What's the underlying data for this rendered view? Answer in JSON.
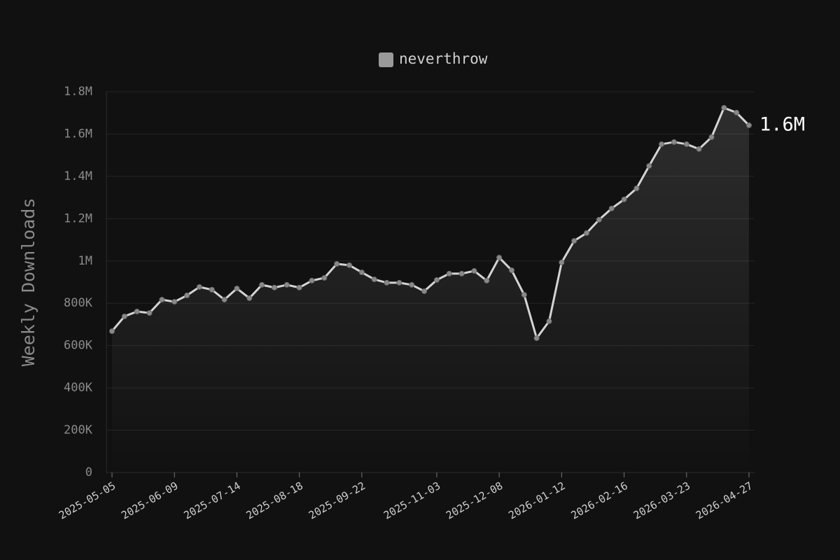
{
  "chart_data": {
    "type": "line",
    "y_label": "Weekly Downloads",
    "categories": [
      "2025-05-05",
      null,
      null,
      null,
      null,
      "2025-06-09",
      null,
      null,
      null,
      null,
      "2025-07-14",
      null,
      null,
      null,
      null,
      "2025-08-18",
      null,
      null,
      null,
      null,
      "2025-09-22",
      null,
      null,
      null,
      null,
      null,
      "2025-11-03",
      null,
      null,
      null,
      null,
      "2025-12-08",
      null,
      null,
      null,
      null,
      "2026-01-12",
      null,
      null,
      null,
      null,
      "2026-02-16",
      null,
      null,
      null,
      null,
      "2026-03-23",
      null,
      null,
      null,
      null,
      "2026-04-27"
    ],
    "series": [
      {
        "name": "neverthrow",
        "color": "#d4d4d4",
        "legend_color": "#9a9a9a",
        "values": [
          668000,
          738000,
          761000,
          754000,
          817000,
          807000,
          837000,
          877000,
          864000,
          817000,
          870000,
          824000,
          887000,
          874000,
          887000,
          874000,
          907000,
          920000,
          986000,
          980000,
          946000,
          913000,
          897000,
          897000,
          887000,
          857000,
          910000,
          940000,
          940000,
          953000,
          907000,
          1016000,
          956000,
          840000,
          635000,
          715000,
          993000,
          1095000,
          1132000,
          1195000,
          1248000,
          1291000,
          1343000,
          1449000,
          1552000,
          1562000,
          1552000,
          1529000,
          1585000,
          1724000,
          1701000,
          1641000
        ],
        "value_labels": [
          null,
          null,
          null,
          null,
          null,
          null,
          null,
          null,
          null,
          null,
          null,
          null,
          null,
          null,
          null,
          null,
          null,
          null,
          null,
          null,
          null,
          null,
          null,
          null,
          null,
          null,
          null,
          null,
          null,
          null,
          null,
          null,
          null,
          null,
          null,
          null,
          null,
          null,
          null,
          null,
          null,
          null,
          null,
          null,
          null,
          null,
          null,
          null,
          null,
          null,
          null,
          "1.6M"
        ]
      }
    ],
    "ylim": [
      0,
      1800000
    ],
    "yticks": [
      0,
      {
        "value": 200000,
        "label": "200K"
      },
      {
        "value": 400000,
        "label": "400K"
      },
      {
        "value": 600000,
        "label": "600K"
      },
      {
        "value": 800000,
        "label": "800K"
      },
      {
        "value": 1000000,
        "label": "1M"
      },
      {
        "value": 1200000,
        "label": "1.2M"
      },
      {
        "value": 1400000,
        "label": "1.4M"
      },
      {
        "value": 1600000,
        "label": "1.6M"
      },
      {
        "value": 1800000,
        "label": "1.8M"
      }
    ],
    "grid": true,
    "legend": "top"
  }
}
